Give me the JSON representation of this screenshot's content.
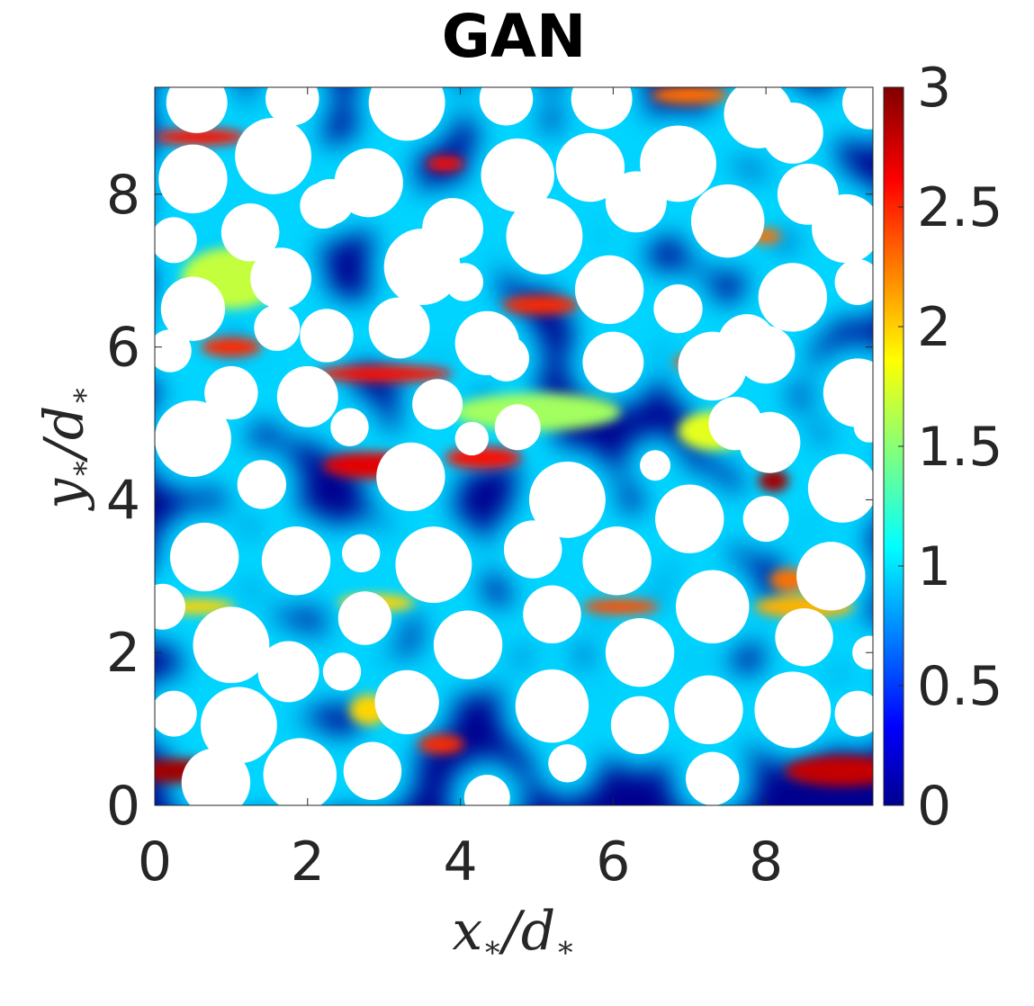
{
  "chart_data": {
    "type": "heatmap",
    "title": "GAN",
    "xlabel": {
      "var": "x",
      "sub": "∗",
      "denom": "d"
    },
    "ylabel": {
      "var": "y",
      "sub": "∗",
      "denom": "d"
    },
    "xlim": [
      0,
      9.4
    ],
    "ylim": [
      0,
      9.4
    ],
    "xticks": [
      "0",
      "2",
      "4",
      "6",
      "8"
    ],
    "xtick_values": [
      0,
      2,
      4,
      6,
      8
    ],
    "yticks": [
      "0",
      "2",
      "4",
      "6",
      "8"
    ],
    "ytick_values": [
      0,
      2,
      4,
      6,
      8
    ],
    "colorbar": {
      "colormap": "jet",
      "range": [
        0,
        3
      ],
      "ticks": [
        "0",
        "0.5",
        "1",
        "1.5",
        "2",
        "2.5",
        "3"
      ],
      "tick_values": [
        0,
        0.5,
        1,
        1.5,
        2,
        2.5,
        3
      ]
    },
    "obstacle_color": "#ffffff",
    "background_field_color": "#00008f",
    "obstacles": [
      {
        "x": 0.55,
        "y": 9.2,
        "r": 0.4
      },
      {
        "x": 1.8,
        "y": 9.25,
        "r": 0.35
      },
      {
        "x": 3.3,
        "y": 9.2,
        "r": 0.5
      },
      {
        "x": 4.6,
        "y": 9.25,
        "r": 0.35
      },
      {
        "x": 5.85,
        "y": 9.25,
        "r": 0.4
      },
      {
        "x": 7.9,
        "y": 9.05,
        "r": 0.45
      },
      {
        "x": 9.35,
        "y": 9.2,
        "r": 0.35
      },
      {
        "x": 0.5,
        "y": 8.2,
        "r": 0.45
      },
      {
        "x": 1.55,
        "y": 8.5,
        "r": 0.5
      },
      {
        "x": 2.2,
        "y": 7.85,
        "r": 0.3
      },
      {
        "x": 2.8,
        "y": 8.15,
        "r": 0.45
      },
      {
        "x": 3.9,
        "y": 7.55,
        "r": 0.4
      },
      {
        "x": 4.75,
        "y": 8.25,
        "r": 0.48
      },
      {
        "x": 5.7,
        "y": 8.35,
        "r": 0.45
      },
      {
        "x": 6.85,
        "y": 8.4,
        "r": 0.5
      },
      {
        "x": 8.35,
        "y": 8.8,
        "r": 0.4
      },
      {
        "x": 7.5,
        "y": 7.65,
        "r": 0.48
      },
      {
        "x": 8.55,
        "y": 8.0,
        "r": 0.4
      },
      {
        "x": 9.05,
        "y": 7.55,
        "r": 0.45
      },
      {
        "x": 5.1,
        "y": 7.45,
        "r": 0.5
      },
      {
        "x": 6.3,
        "y": 7.9,
        "r": 0.4
      },
      {
        "x": 2.3,
        "y": 7.9,
        "r": 0.3
      },
      {
        "x": 3.5,
        "y": 7.05,
        "r": 0.5
      },
      {
        "x": 1.25,
        "y": 7.5,
        "r": 0.38
      },
      {
        "x": 0.25,
        "y": 7.4,
        "r": 0.3
      },
      {
        "x": 4.05,
        "y": 6.85,
        "r": 0.25
      },
      {
        "x": 5.95,
        "y": 6.75,
        "r": 0.45
      },
      {
        "x": 8.35,
        "y": 6.65,
        "r": 0.45
      },
      {
        "x": 9.2,
        "y": 6.85,
        "r": 0.3
      },
      {
        "x": 0.5,
        "y": 6.5,
        "r": 0.42
      },
      {
        "x": 1.65,
        "y": 6.9,
        "r": 0.4
      },
      {
        "x": 2.25,
        "y": 6.15,
        "r": 0.35
      },
      {
        "x": 3.2,
        "y": 6.25,
        "r": 0.4
      },
      {
        "x": 6.85,
        "y": 6.5,
        "r": 0.32
      },
      {
        "x": 4.35,
        "y": 6.05,
        "r": 0.42
      },
      {
        "x": 7.75,
        "y": 6.05,
        "r": 0.38
      },
      {
        "x": 0.2,
        "y": 5.95,
        "r": 0.28
      },
      {
        "x": 1.6,
        "y": 6.25,
        "r": 0.3
      },
      {
        "x": 4.6,
        "y": 5.85,
        "r": 0.3
      },
      {
        "x": 6.0,
        "y": 5.8,
        "r": 0.4
      },
      {
        "x": 7.3,
        "y": 5.75,
        "r": 0.45
      },
      {
        "x": 8.0,
        "y": 5.9,
        "r": 0.38
      },
      {
        "x": 9.2,
        "y": 5.4,
        "r": 0.45
      },
      {
        "x": 0.5,
        "y": 4.8,
        "r": 0.5
      },
      {
        "x": 2.0,
        "y": 5.35,
        "r": 0.4
      },
      {
        "x": 1.0,
        "y": 5.4,
        "r": 0.35
      },
      {
        "x": 2.55,
        "y": 4.95,
        "r": 0.25
      },
      {
        "x": 3.7,
        "y": 5.25,
        "r": 0.33
      },
      {
        "x": 4.15,
        "y": 4.8,
        "r": 0.22
      },
      {
        "x": 4.75,
        "y": 4.95,
        "r": 0.3
      },
      {
        "x": 6.55,
        "y": 4.45,
        "r": 0.2
      },
      {
        "x": 7.6,
        "y": 5.0,
        "r": 0.35
      },
      {
        "x": 8.05,
        "y": 4.75,
        "r": 0.4
      },
      {
        "x": 9.0,
        "y": 4.15,
        "r": 0.45
      },
      {
        "x": 1.4,
        "y": 4.2,
        "r": 0.32
      },
      {
        "x": 3.35,
        "y": 4.3,
        "r": 0.45
      },
      {
        "x": 5.4,
        "y": 4.0,
        "r": 0.5
      },
      {
        "x": 7.0,
        "y": 3.75,
        "r": 0.45
      },
      {
        "x": 8.0,
        "y": 3.75,
        "r": 0.3
      },
      {
        "x": 9.35,
        "y": 4.95,
        "r": 0.2
      },
      {
        "x": 0.65,
        "y": 3.25,
        "r": 0.45
      },
      {
        "x": 1.85,
        "y": 3.2,
        "r": 0.45
      },
      {
        "x": 2.7,
        "y": 3.3,
        "r": 0.25
      },
      {
        "x": 3.65,
        "y": 3.15,
        "r": 0.5
      },
      {
        "x": 4.95,
        "y": 3.35,
        "r": 0.38
      },
      {
        "x": 6.05,
        "y": 3.2,
        "r": 0.45
      },
      {
        "x": 8.85,
        "y": 3.0,
        "r": 0.45
      },
      {
        "x": 0.1,
        "y": 2.6,
        "r": 0.3
      },
      {
        "x": 1.0,
        "y": 2.1,
        "r": 0.5
      },
      {
        "x": 2.75,
        "y": 2.45,
        "r": 0.35
      },
      {
        "x": 4.1,
        "y": 2.1,
        "r": 0.45
      },
      {
        "x": 5.2,
        "y": 2.5,
        "r": 0.38
      },
      {
        "x": 6.35,
        "y": 2.0,
        "r": 0.45
      },
      {
        "x": 7.3,
        "y": 2.6,
        "r": 0.48
      },
      {
        "x": 8.5,
        "y": 2.2,
        "r": 0.38
      },
      {
        "x": 9.35,
        "y": 2.0,
        "r": 0.22
      },
      {
        "x": 1.75,
        "y": 1.75,
        "r": 0.4
      },
      {
        "x": 3.3,
        "y": 1.35,
        "r": 0.42
      },
      {
        "x": 5.2,
        "y": 1.3,
        "r": 0.48
      },
      {
        "x": 7.25,
        "y": 1.25,
        "r": 0.45
      },
      {
        "x": 8.35,
        "y": 1.25,
        "r": 0.5
      },
      {
        "x": 9.2,
        "y": 1.2,
        "r": 0.3
      },
      {
        "x": 0.25,
        "y": 1.2,
        "r": 0.3
      },
      {
        "x": 1.1,
        "y": 1.05,
        "r": 0.5
      },
      {
        "x": 2.45,
        "y": 1.75,
        "r": 0.25
      },
      {
        "x": 6.35,
        "y": 1.05,
        "r": 0.38
      },
      {
        "x": 0.8,
        "y": 0.3,
        "r": 0.45
      },
      {
        "x": 1.9,
        "y": 0.4,
        "r": 0.48
      },
      {
        "x": 2.85,
        "y": 0.45,
        "r": 0.38
      },
      {
        "x": 4.35,
        "y": 0.1,
        "r": 0.3
      },
      {
        "x": 5.4,
        "y": 0.55,
        "r": 0.25
      },
      {
        "x": 7.3,
        "y": 0.35,
        "r": 0.35
      }
    ],
    "hotspots": [
      {
        "x": 0.35,
        "y": 0.45,
        "w": 1.4,
        "h": 0.32,
        "v": 2.9
      },
      {
        "x": 9.0,
        "y": 0.45,
        "w": 1.5,
        "h": 0.4,
        "v": 2.8
      },
      {
        "x": 2.85,
        "y": 4.45,
        "w": 1.3,
        "h": 0.35,
        "v": 2.7
      },
      {
        "x": 4.3,
        "y": 4.55,
        "w": 1.0,
        "h": 0.28,
        "v": 2.6
      },
      {
        "x": 3.0,
        "y": 5.65,
        "w": 1.8,
        "h": 0.22,
        "v": 2.6
      },
      {
        "x": 5.05,
        "y": 6.55,
        "w": 1.0,
        "h": 0.25,
        "v": 2.5
      },
      {
        "x": 1.0,
        "y": 6.0,
        "w": 0.8,
        "h": 0.25,
        "v": 2.5
      },
      {
        "x": 1.3,
        "y": 7.1,
        "w": 0.8,
        "h": 0.25,
        "v": 2.3
      },
      {
        "x": 0.6,
        "y": 8.75,
        "w": 1.2,
        "h": 0.22,
        "v": 2.6
      },
      {
        "x": 3.8,
        "y": 8.4,
        "w": 0.5,
        "h": 0.2,
        "v": 2.6
      },
      {
        "x": 7.0,
        "y": 9.3,
        "w": 1.0,
        "h": 0.25,
        "v": 2.3
      },
      {
        "x": 8.1,
        "y": 4.25,
        "w": 0.4,
        "h": 0.3,
        "v": 2.9
      },
      {
        "x": 8.3,
        "y": 2.95,
        "w": 0.5,
        "h": 0.3,
        "v": 2.3
      },
      {
        "x": 6.1,
        "y": 2.6,
        "w": 1.0,
        "h": 0.2,
        "v": 2.4
      },
      {
        "x": 3.75,
        "y": 0.8,
        "w": 0.6,
        "h": 0.25,
        "v": 2.5
      },
      {
        "x": 7.0,
        "y": 5.8,
        "w": 0.4,
        "h": 0.2,
        "v": 2.4
      },
      {
        "x": 8.0,
        "y": 7.45,
        "w": 0.4,
        "h": 0.2,
        "v": 2.3
      },
      {
        "x": 0.55,
        "y": 2.6,
        "w": 1.0,
        "h": 0.2,
        "v": 2.0
      },
      {
        "x": 2.9,
        "y": 2.65,
        "w": 1.0,
        "h": 0.22,
        "v": 2.0
      },
      {
        "x": 7.3,
        "y": 4.9,
        "w": 0.9,
        "h": 0.5,
        "v": 1.8
      },
      {
        "x": 1.0,
        "y": 6.9,
        "w": 1.3,
        "h": 0.8,
        "v": 1.7
      },
      {
        "x": 5.0,
        "y": 5.15,
        "w": 2.2,
        "h": 0.5,
        "v": 1.6
      },
      {
        "x": 8.5,
        "y": 2.6,
        "w": 1.3,
        "h": 0.3,
        "v": 2.1
      },
      {
        "x": 2.8,
        "y": 1.25,
        "w": 0.5,
        "h": 0.4,
        "v": 2.0
      }
    ]
  }
}
